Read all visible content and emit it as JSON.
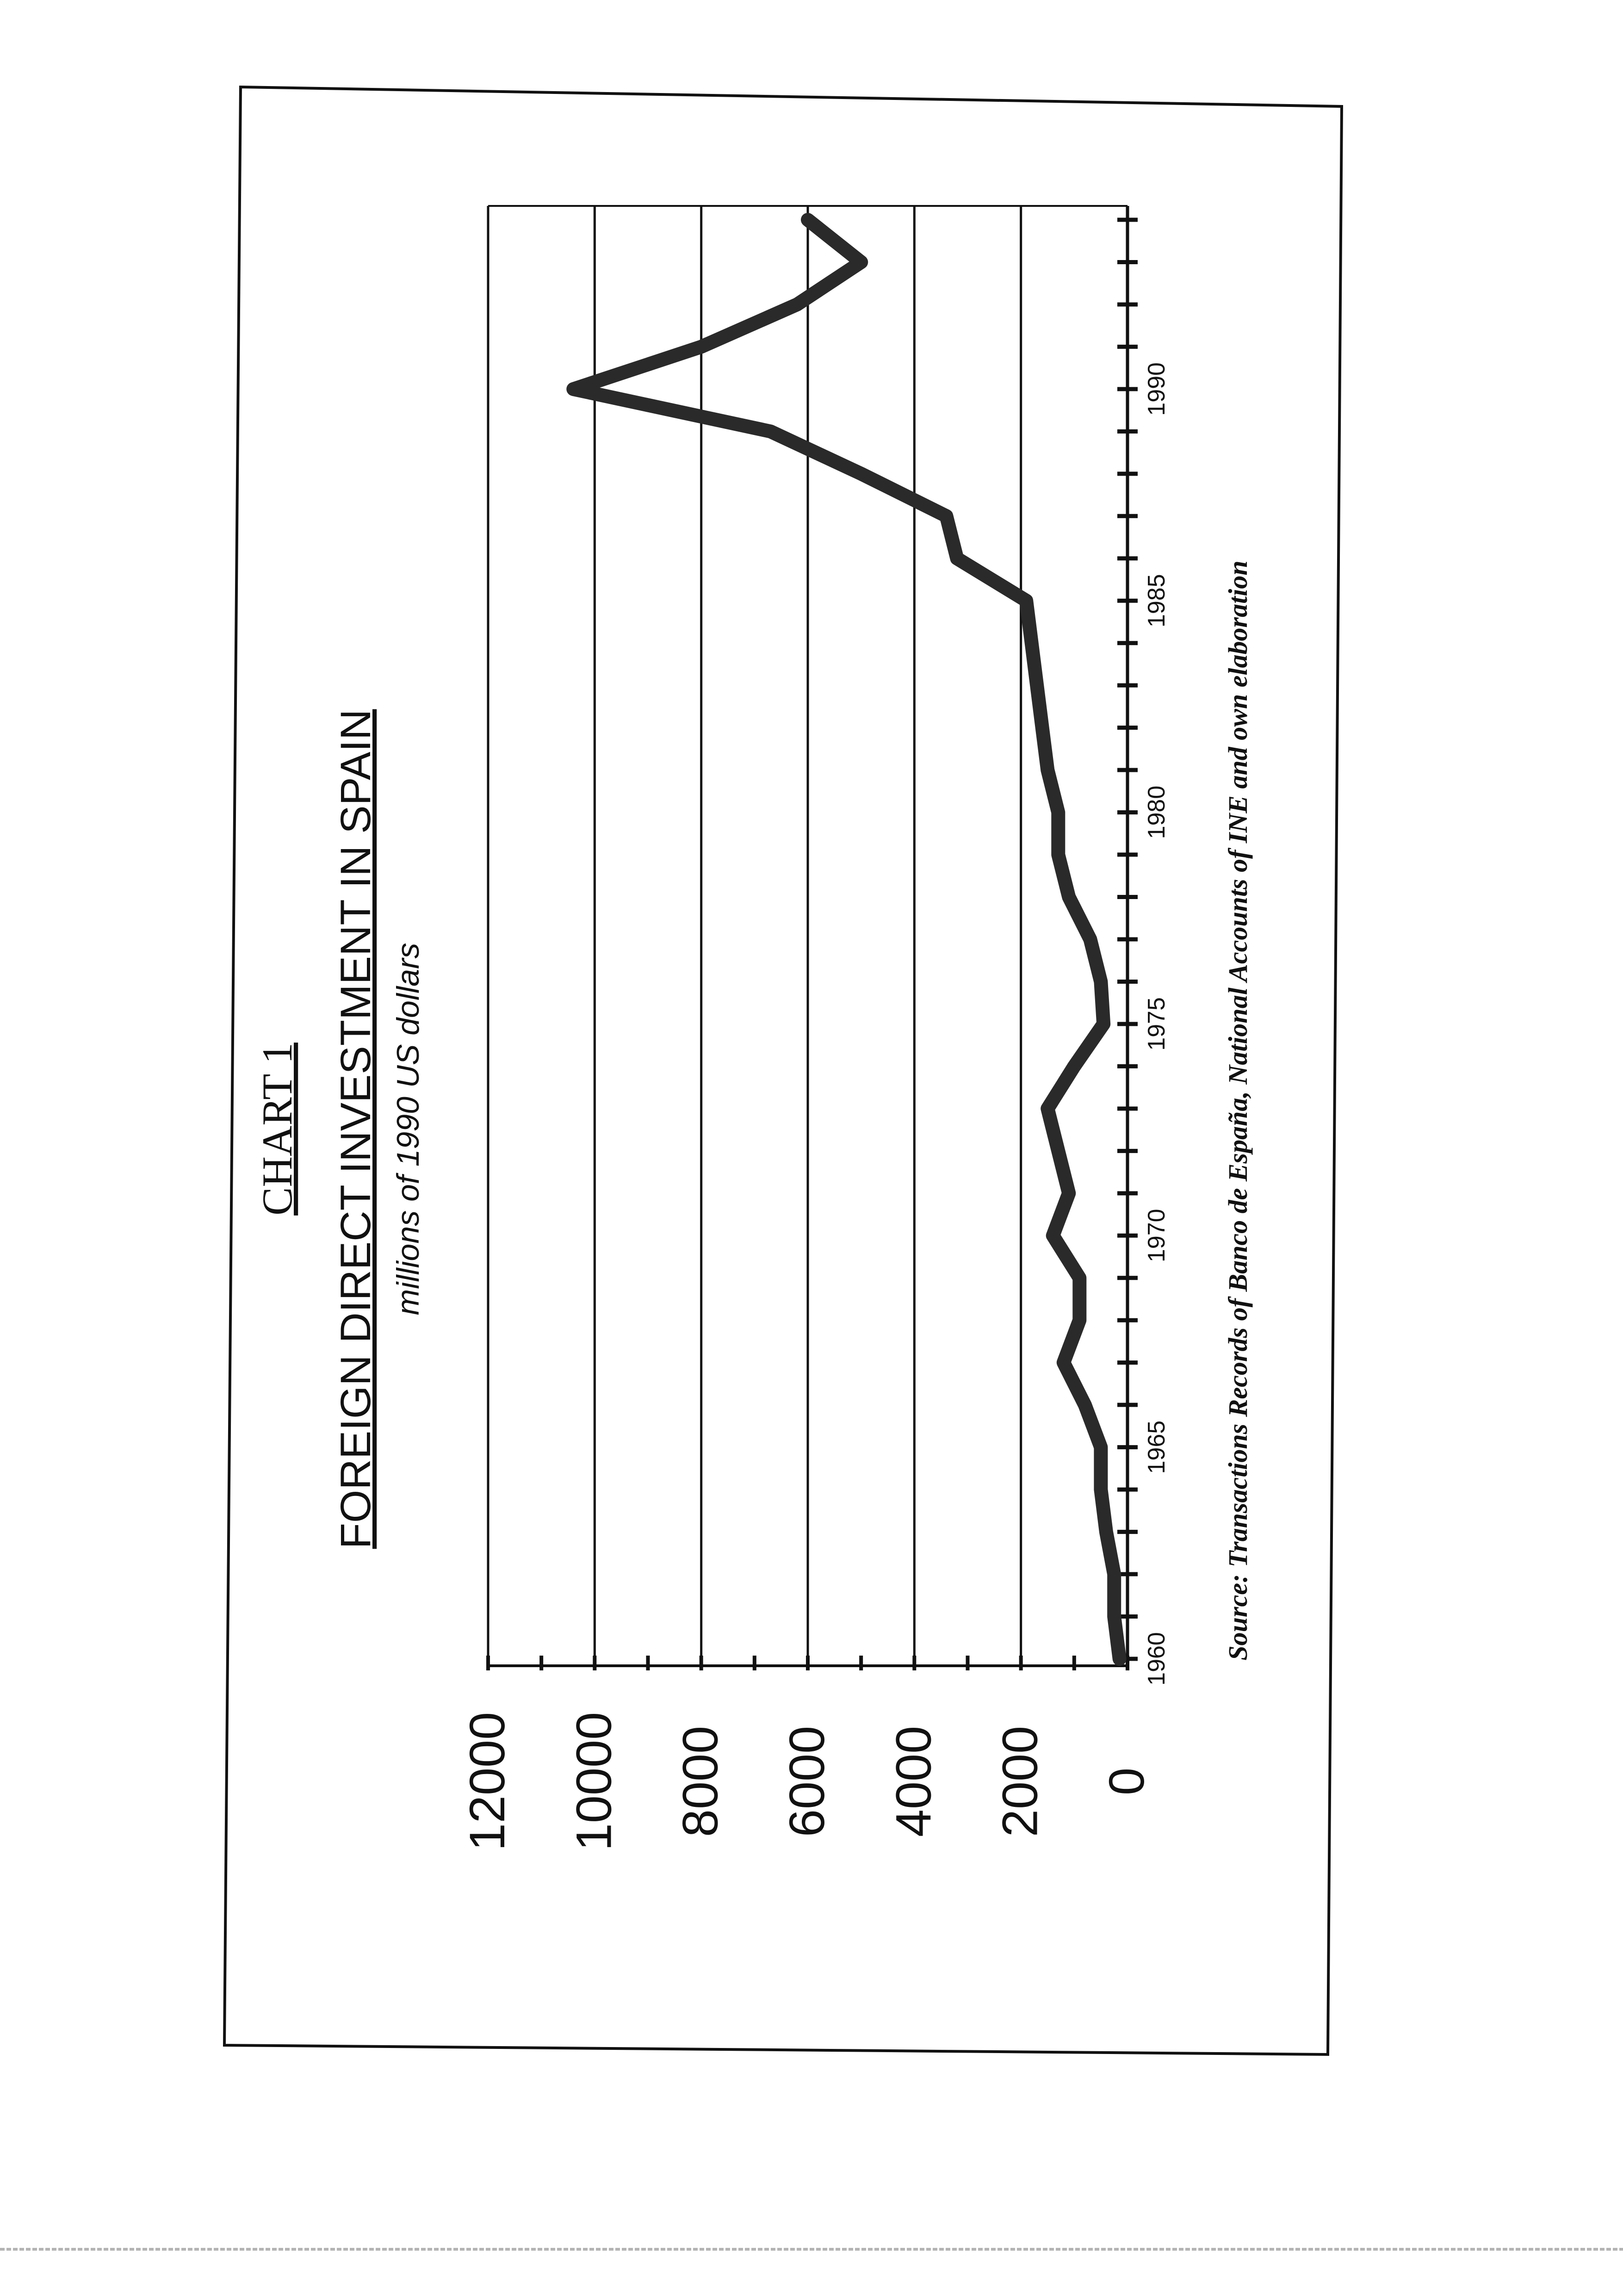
{
  "chart_data": {
    "type": "line",
    "chart_number": "CHART 1",
    "title": "FOREIGN DIRECT INVESTMENT IN SPAIN",
    "subtitle": "millions of 1990 US dollars",
    "source": "Source: Transactions Records of Banco de España, National Accounts of INE  and own elaboration",
    "xlabel": "",
    "ylabel": "",
    "ylim": [
      0,
      12000
    ],
    "xlim": [
      1960,
      1994
    ],
    "yticks": [
      0,
      2000,
      4000,
      6000,
      8000,
      10000,
      12000
    ],
    "ytick_labels": [
      "0",
      "2000",
      "4000",
      "6000",
      "8000",
      "10000",
      "12000"
    ],
    "xticks": [
      1960,
      1965,
      1970,
      1975,
      1980,
      1985,
      1990
    ],
    "xtick_labels": [
      "1960",
      "1965",
      "1970",
      "1975",
      "1980",
      "1985",
      "1990"
    ],
    "grid": true,
    "orientation": "rotated 90 degrees counter-clockwise on the page",
    "line_color": "#2a2a2a",
    "series": [
      {
        "x": [
          1960,
          1961,
          1962,
          1963,
          1964,
          1965,
          1966,
          1967,
          1968,
          1969,
          1970,
          1971,
          1972,
          1973,
          1974,
          1975,
          1976,
          1977,
          1978,
          1979,
          1980,
          1981,
          1982,
          1983,
          1984,
          1985,
          1986,
          1987,
          1988,
          1989,
          1990,
          1991,
          1992,
          1993,
          1994
        ],
        "values": [
          150,
          250,
          250,
          400,
          500,
          500,
          800,
          1200,
          900,
          900,
          1400,
          1100,
          1300,
          1500,
          1000,
          450,
          500,
          700,
          1100,
          1300,
          1300,
          1500,
          1600,
          1700,
          1800,
          1900,
          3200,
          3400,
          5000,
          6700,
          10400,
          8000,
          6200,
          5000,
          6000
        ]
      }
    ]
  }
}
